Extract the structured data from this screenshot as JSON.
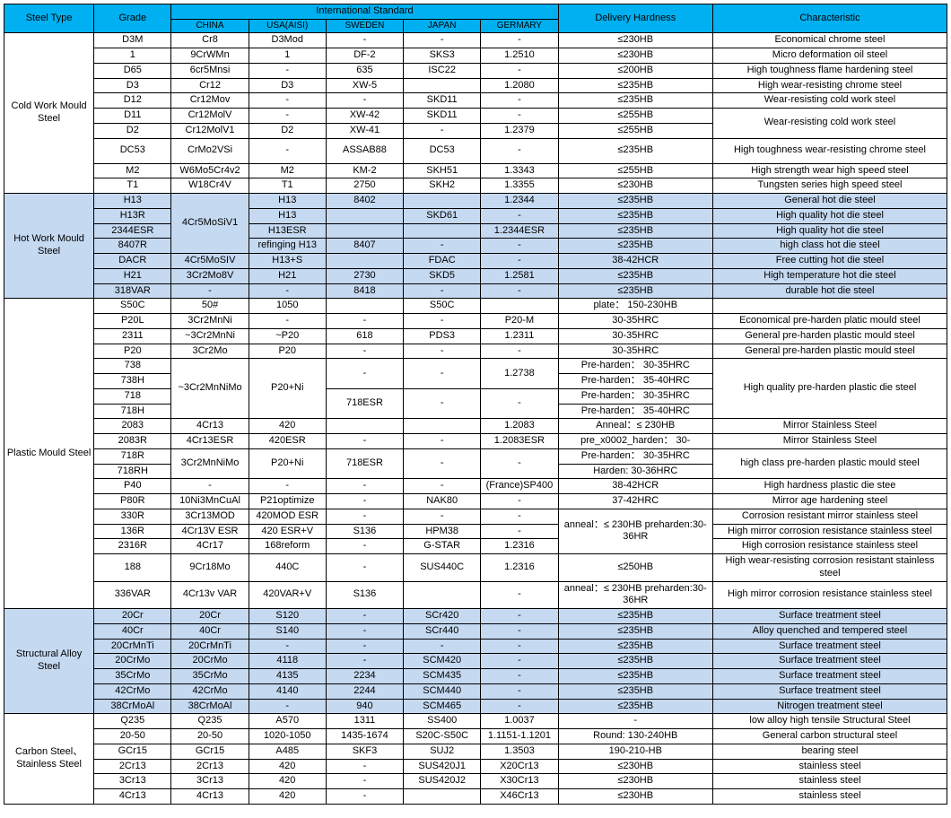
{
  "theme": {
    "header_bg": "#00b0f0",
    "band_bg": "#c5d9f1",
    "border": "#000000",
    "font_size_pt": 8
  },
  "columns": {
    "steel_type_w": 86,
    "grade_w": 74,
    "country_w": 74,
    "delivery_w": 148,
    "char_w": 224
  },
  "header": {
    "steel_type": "Steel Type",
    "grade": "Grade",
    "intl": "International Standard",
    "countries": [
      "CHINA",
      "USA(AISI)",
      "SWEDEN",
      "JAPAN",
      "GERMARY"
    ],
    "delivery": "Delivery Hardness",
    "characteristic": "Characteristic"
  },
  "sections": [
    {
      "name": "Cold Work Mould Steel",
      "band": false,
      "rows": [
        {
          "grade": "D3M",
          "c": [
            "Cr8",
            "D3Mod",
            "-",
            "-",
            "-"
          ],
          "hard": "≤230HB",
          "char": "Economical chrome steel"
        },
        {
          "grade": "1",
          "c": [
            "9CrWMn",
            "1",
            "DF-2",
            "SKS3",
            "1.2510"
          ],
          "hard": "≤230HB",
          "char": "Micro deformation oil steel"
        },
        {
          "grade": "D65",
          "c": [
            "6cr5Mnsi",
            "-",
            "635",
            "ISC22",
            "-"
          ],
          "hard": "≤200HB",
          "char": "High toughness flame hardening steel"
        },
        {
          "grade": "D3",
          "c": [
            "Cr12",
            "D3",
            "XW-5",
            "",
            "1.2080"
          ],
          "hard": "≤235HB",
          "char": "High wear-resisting chrome steel"
        },
        {
          "grade": "D12",
          "c": [
            "Cr12Mov",
            "-",
            "-",
            "SKD11",
            "-"
          ],
          "hard": "≤235HB",
          "char": "Wear-resisting cold work steel"
        },
        {
          "grade": "D11",
          "c": [
            "Cr12MolV",
            "-",
            "XW-42",
            "SKD11",
            "-"
          ],
          "hard": "≤255HB",
          "char": "Wear-resisting cold work steel",
          "char_rowspan": 2
        },
        {
          "grade": "D2",
          "c": [
            "Cr12MolV1",
            "D2",
            "XW-41",
            "-",
            "1.2379"
          ],
          "hard": "≤255HB"
        },
        {
          "grade": "DC53",
          "c": [
            "CrMo2VSi",
            "-",
            "ASSAB88",
            "DC53",
            "-"
          ],
          "hard": "≤235HB",
          "char": "High toughness wear-resisting chrome steel",
          "tall": true
        },
        {
          "grade": "M2",
          "c": [
            "W6Mo5Cr4v2",
            "M2",
            "KM-2",
            "SKH51",
            "1.3343"
          ],
          "hard": "≤255HB",
          "char": "High strength wear high speed steel"
        },
        {
          "grade": "T1",
          "c": [
            "W18Cr4V",
            "T1",
            "2750",
            "SKH2",
            "1.3355"
          ],
          "hard": "≤230HB",
          "char": "Tungsten series high speed steel"
        }
      ]
    },
    {
      "name": "Hot Work Mould Steel",
      "band": true,
      "rows": [
        {
          "grade": "H13",
          "c": [
            "",
            "H13",
            "8402",
            "",
            "1.2344"
          ],
          "hard": "≤235HB",
          "char": "General hot die steel",
          "china_rowspan": 4,
          "china_val": "4Cr5MoSiV1"
        },
        {
          "grade": "H13R",
          "c": [
            null,
            "H13",
            "",
            "SKD61",
            "-"
          ],
          "hard": "≤235HB",
          "char": "High quality hot die steel"
        },
        {
          "grade": "2344ESR",
          "c": [
            null,
            "H13ESR",
            "",
            "",
            "1.2344ESR"
          ],
          "hard": "≤235HB",
          "char": "High quality hot die steel"
        },
        {
          "grade": "8407R",
          "c": [
            null,
            "refinging H13",
            "8407",
            "-",
            "-"
          ],
          "hard": "≤235HB",
          "char": "high class hot die steel"
        },
        {
          "grade": "DACR",
          "c": [
            "4Cr5MoSIV",
            "H13+S",
            "",
            "FDAC",
            "-"
          ],
          "hard": "38-42HCR",
          "char": "Free cutting hot die steel"
        },
        {
          "grade": "H21",
          "c": [
            "3Cr2Mo8V",
            "H21",
            "2730",
            "SKD5",
            "1.2581"
          ],
          "hard": "≤235HB",
          "char": "High temperature hot die steel"
        },
        {
          "grade": "318VAR",
          "c": [
            "-",
            "-",
            "8418",
            "-",
            "-"
          ],
          "hard": "≤235HB",
          "char": "durable hot die steel"
        }
      ]
    },
    {
      "name": "Plastic Mould Steel",
      "band": false,
      "rows": [
        {
          "grade": "S50C",
          "c": [
            "50#",
            "1050",
            "",
            "S50C",
            ""
          ],
          "hard": "plate： 150-230HB",
          "char": ""
        },
        {
          "grade": "P20L",
          "c": [
            "3Cr2MnNi",
            "-",
            "-",
            "-",
            "P20-M"
          ],
          "hard": "30-35HRC",
          "char": "Economical pre-harden platic mould steel"
        },
        {
          "grade": "2311",
          "c": [
            "~3Cr2MnNi",
            "~P20",
            "618",
            "PDS3",
            "1.2311"
          ],
          "hard": "30-35HRC",
          "char": "General pre-harden plastic mould steel"
        },
        {
          "grade": "P20",
          "c": [
            "3Cr2Mo",
            "P20",
            "-",
            "-",
            "-"
          ],
          "hard": "30-35HRC",
          "char": "General pre-harden plastic mould steel"
        },
        {
          "grade": "738",
          "c": [
            "",
            "",
            "",
            "",
            "1.2738"
          ],
          "hard": "Pre-harden： 30-35HRC",
          "char": "High quality pre-harden plastic die steel",
          "china_rowspan": 4,
          "china_val": "~3Cr2MnNiMo",
          "usa_rowspan": 4,
          "usa_val": "P20+Ni",
          "sweden_rowspan": 2,
          "sweden_val": "-",
          "japan_rowspan": 2,
          "japan_val": "-",
          "germ_rowspan": 2,
          "char_rowspan": 4
        },
        {
          "grade": "738H",
          "c": [
            null,
            null,
            null,
            null,
            null
          ],
          "hard": "Pre-harden： 35-40HRC"
        },
        {
          "grade": "718",
          "c": [
            null,
            null,
            "718ESR",
            "-",
            "-"
          ],
          "hard": "Pre-harden： 30-35HRC",
          "sweden_rowspan": 2,
          "japan_rowspan": 2,
          "germ_rowspan": 2
        },
        {
          "grade": "718H",
          "c": [
            null,
            null,
            null,
            null,
            null
          ],
          "hard": "Pre-harden： 35-40HRC"
        },
        {
          "grade": "2083",
          "c": [
            "4Cr13",
            "420",
            "",
            "",
            "1.2083"
          ],
          "hard": "Anneal：≤ 230HB",
          "char": "Mirror Stainless Steel"
        },
        {
          "grade": "2083R",
          "c": [
            "4Cr13ESR",
            "420ESR",
            "-",
            "-",
            "1.2083ESR"
          ],
          "hard": "pre_x0002_harden： 30-",
          "char": "Mirror Stainless Steel"
        },
        {
          "grade": "718R",
          "c": [
            "3Cr2MnNiMo",
            "P20+Ni",
            "718ESR",
            "-",
            "-"
          ],
          "hard": "Pre-harden： 30-35HRC",
          "char": "high class pre-harden plastic mould steel",
          "china_rowspan": 2,
          "usa_rowspan": 2,
          "sweden_rowspan": 2,
          "japan_rowspan": 2,
          "germ_rowspan": 2,
          "char_rowspan": 2
        },
        {
          "grade": "718RH",
          "c": [
            null,
            null,
            null,
            null,
            null
          ],
          "hard": "Harden: 30-36HRC"
        },
        {
          "grade": "P40",
          "c": [
            "-",
            "-",
            "-",
            "-",
            "(France)SP400"
          ],
          "hard": "38-42HCR",
          "char": "High hardness plastic die stee"
        },
        {
          "grade": "P80R",
          "c": [
            "10Ni3MnCuAl",
            "P21optimize",
            "-",
            "NAK80",
            "-"
          ],
          "hard": "37-42HRC",
          "char": "Mirror age hardening steel"
        },
        {
          "grade": "330R",
          "c": [
            "3Cr13MOD",
            "420MOD ESR",
            "-",
            "-",
            "-"
          ],
          "hard": "anneal：≤ 230HB preharden:30-36HR",
          "char": "Corrosion resistant mirror stainless steel",
          "hard_rowspan": 3
        },
        {
          "grade": "136R",
          "c": [
            "4Cr13V ESR",
            "420 ESR+V",
            "S136",
            "HPM38",
            "-"
          ],
          "char": "High mirror corrosion resistance stainless steel"
        },
        {
          "grade": "2316R",
          "c": [
            "4Cr17",
            "168reform",
            "-",
            "G-STAR",
            "1.2316"
          ],
          "char": "High corrosion resistance stainless steel"
        },
        {
          "grade": "188",
          "c": [
            "9Cr18Mo",
            "440C",
            "-",
            "SUS440C",
            "1.2316"
          ],
          "hard": "≤250HB",
          "char": "High wear-resisting corrosion resistant stainless steel"
        },
        {
          "grade": "336VAR",
          "c": [
            "4Cr13v VAR",
            "420VAR+V",
            "S136",
            "",
            "-"
          ],
          "hard": "anneal：≤ 230HB preharden:30-36HR",
          "char": "High mirror corrosion resistance stainless steel",
          "tall": true
        }
      ]
    },
    {
      "name": "Structural Alloy Steel",
      "band": true,
      "rows": [
        {
          "grade": "20Cr",
          "c": [
            "20Cr",
            "S120",
            "-",
            "SCr420",
            "-"
          ],
          "hard": "≤235HB",
          "char": "Surface treatment steel"
        },
        {
          "grade": "40Cr",
          "c": [
            "40Cr",
            "S140",
            "-",
            "SCr440",
            "-"
          ],
          "hard": "≤235HB",
          "char": "Alloy quenched and tempered steel"
        },
        {
          "grade": "20CrMnTi",
          "c": [
            "20CrMnTi",
            "-",
            "-",
            "-",
            "-"
          ],
          "hard": "≤235HB",
          "char": "Surface treatment steel"
        },
        {
          "grade": "20CrMo",
          "c": [
            "20CrMo",
            "4118",
            "-",
            "SCM420",
            "-"
          ],
          "hard": "≤235HB",
          "char": "Surface treatment steel"
        },
        {
          "grade": "35CrMo",
          "c": [
            "35CrMo",
            "4135",
            "2234",
            "SCM435",
            "-"
          ],
          "hard": "≤235HB",
          "char": "Surface treatment steel"
        },
        {
          "grade": "42CrMo",
          "c": [
            "42CrMo",
            "4140",
            "2244",
            "SCM440",
            "-"
          ],
          "hard": "≤235HB",
          "char": "Surface treatment steel"
        },
        {
          "grade": "38CrMoAl",
          "c": [
            "38CrMoAl",
            "-",
            "940",
            "SCM465",
            "-"
          ],
          "hard": "≤235HB",
          "char": "Nitrogen treatment steel"
        }
      ]
    },
    {
      "name": "Carbon Steel、Stainless Steel",
      "band": false,
      "rows": [
        {
          "grade": "Q235",
          "c": [
            "Q235",
            "A570",
            "1311",
            "SS400",
            "1.0037"
          ],
          "hard": "-",
          "char": "low alloy high tensile Structural Steel"
        },
        {
          "grade": "20-50",
          "c": [
            "20-50",
            "1020-1050",
            "1435-1674",
            "S20C-S50C",
            "1.1151-1.1201"
          ],
          "hard": "Round: 130-240HB",
          "char": "General carbon structural steel"
        },
        {
          "grade": "GCr15",
          "c": [
            "GCr15",
            "A485",
            "SKF3",
            "SUJ2",
            "1.3503"
          ],
          "hard": "190-210-HB",
          "char": "bearing steel"
        },
        {
          "grade": "2Cr13",
          "c": [
            "2Cr13",
            "420",
            "-",
            "SUS420J1",
            "X20Cr13"
          ],
          "hard": "≤230HB",
          "char": "stainless steel"
        },
        {
          "grade": "3Cr13",
          "c": [
            "3Cr13",
            "420",
            "-",
            "SUS420J2",
            "X30Cr13"
          ],
          "hard": "≤230HB",
          "char": "stainless steel"
        },
        {
          "grade": "4Cr13",
          "c": [
            "4Cr13",
            "420",
            "-",
            "",
            "X46Cr13"
          ],
          "hard": "≤230HB",
          "char": "stainless steel"
        }
      ]
    }
  ]
}
